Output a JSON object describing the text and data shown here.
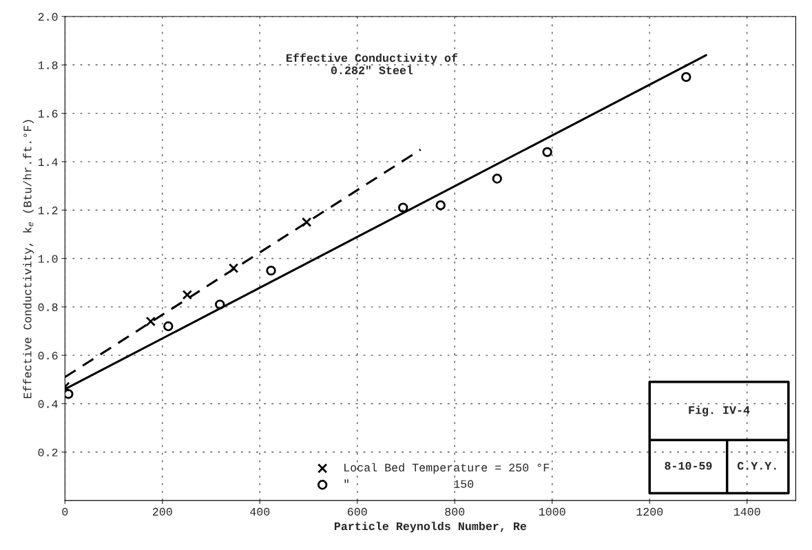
{
  "chart_data": {
    "type": "scatter",
    "title": "Effective Conductivity of\n0.282\" Steel",
    "xlabel": "Particle Reynolds Number, Re",
    "ylabel": "Effective Conductivity, k$_{e}$ (Btu/hr.ft.°F)",
    "series": [
      {
        "name": "Local Bed Temperature = 250 °F",
        "marker": "cross",
        "color": "#000000",
        "x": [
          0,
          176,
          251,
          346,
          496
        ],
        "values": [
          0.47,
          0.74,
          0.85,
          0.96,
          1.15
        ]
      },
      {
        "type": "line",
        "line_style": "dashed",
        "marker": "none",
        "color": "#000000",
        "x": [
          0,
          730
        ],
        "values": [
          0.51,
          1.45
        ]
      },
      {
        "name": "″               150",
        "marker": "circle",
        "color": "#000000",
        "x": [
          7,
          212,
          318,
          423,
          694,
          771,
          887,
          990,
          1275
        ],
        "values": [
          0.44,
          0.72,
          0.81,
          0.95,
          1.21,
          1.22,
          1.33,
          1.44,
          1.75
        ]
      },
      {
        "type": "line",
        "line_style": "solid",
        "marker": "none",
        "color": "#000000",
        "x": [
          0,
          1316
        ],
        "values": [
          0.46,
          1.84
        ]
      }
    ],
    "xlim": [
      0,
      1500
    ],
    "ylim": [
      0,
      2.0
    ],
    "xticks": [
      0,
      200,
      400,
      600,
      800,
      1000,
      1200,
      1400
    ],
    "yticks": [
      0.2,
      0.4,
      0.6,
      0.8,
      {
        "value": 1,
        "label": "1.0"
      },
      1.2,
      1.4,
      1.6,
      1.8,
      {
        "value": 2,
        "label": "2.0"
      }
    ],
    "grid": true,
    "legend": "lower center",
    "annotations": [
      "Fig. IV-4",
      "8-10-59",
      "C.Y.Y."
    ]
  }
}
